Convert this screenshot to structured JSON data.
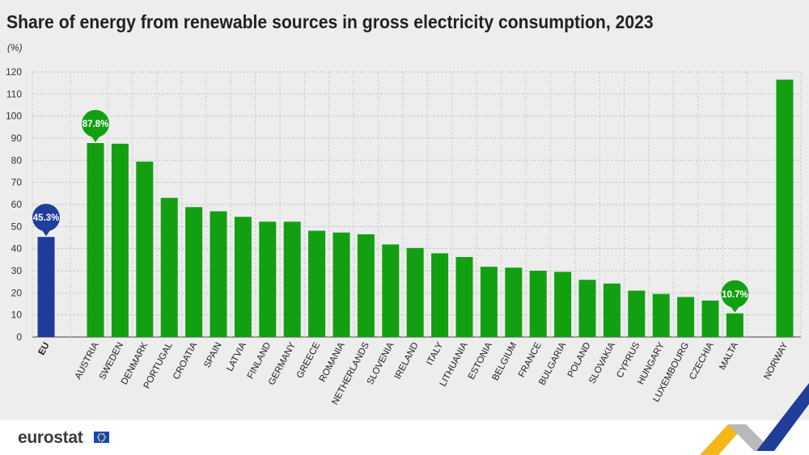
{
  "title": "Share of energy from renewable sources in gross electricity consumption, 2023",
  "unit": "(%)",
  "brand": {
    "name": "eurostat",
    "flag_icon": "eu-flag-icon"
  },
  "colors": {
    "eu_bar": "#1f3d99",
    "country_bar": "#12a012",
    "grid": "#c9c9c9",
    "background": "#ededed"
  },
  "chart_data": {
    "type": "bar",
    "title": "Share of energy from renewable sources in gross electricity consumption, 2023",
    "ylabel": "(%)",
    "xlabel": "",
    "ylim": [
      0,
      120
    ],
    "yticks": [
      0,
      10,
      20,
      30,
      40,
      50,
      60,
      70,
      80,
      90,
      100,
      110,
      120
    ],
    "grid": true,
    "categories": [
      "EU",
      "AUSTRIA",
      "SWEDEN",
      "DENMARK",
      "PORTUGAL",
      "CROATIA",
      "SPAIN",
      "LATVIA",
      "FINLAND",
      "GERMANY",
      "GREECE",
      "ROMANIA",
      "NETHERLANDS",
      "SLOVENIA",
      "IRELAND",
      "ITALY",
      "LITHUANIA",
      "ESTONIA",
      "BELGIUM",
      "FRANCE",
      "BULGARIA",
      "POLAND",
      "SLOVAKIA",
      "CYPRUS",
      "HUNGARY",
      "LUXEMBOURG",
      "CZECHIA",
      "MALTA",
      "NORWAY"
    ],
    "values": [
      45.3,
      87.8,
      87.5,
      79.4,
      63.0,
      58.8,
      56.9,
      54.4,
      52.2,
      52.2,
      48.1,
      47.3,
      46.5,
      41.9,
      40.3,
      37.9,
      36.2,
      31.8,
      31.4,
      30.0,
      29.5,
      25.9,
      24.2,
      21.0,
      19.5,
      18.1,
      16.5,
      10.7,
      116.5
    ],
    "groups": [
      "eu",
      "country",
      "country",
      "country",
      "country",
      "country",
      "country",
      "country",
      "country",
      "country",
      "country",
      "country",
      "country",
      "country",
      "country",
      "country",
      "country",
      "country",
      "country",
      "country",
      "country",
      "country",
      "country",
      "country",
      "country",
      "country",
      "country",
      "country",
      "other"
    ],
    "callouts": [
      {
        "category": "EU",
        "label": "45.3%",
        "color": "#1f3d99"
      },
      {
        "category": "AUSTRIA",
        "label": "87.8%",
        "color": "#12a012"
      },
      {
        "category": "MALTA",
        "label": "10.7%",
        "color": "#12a012"
      }
    ]
  }
}
